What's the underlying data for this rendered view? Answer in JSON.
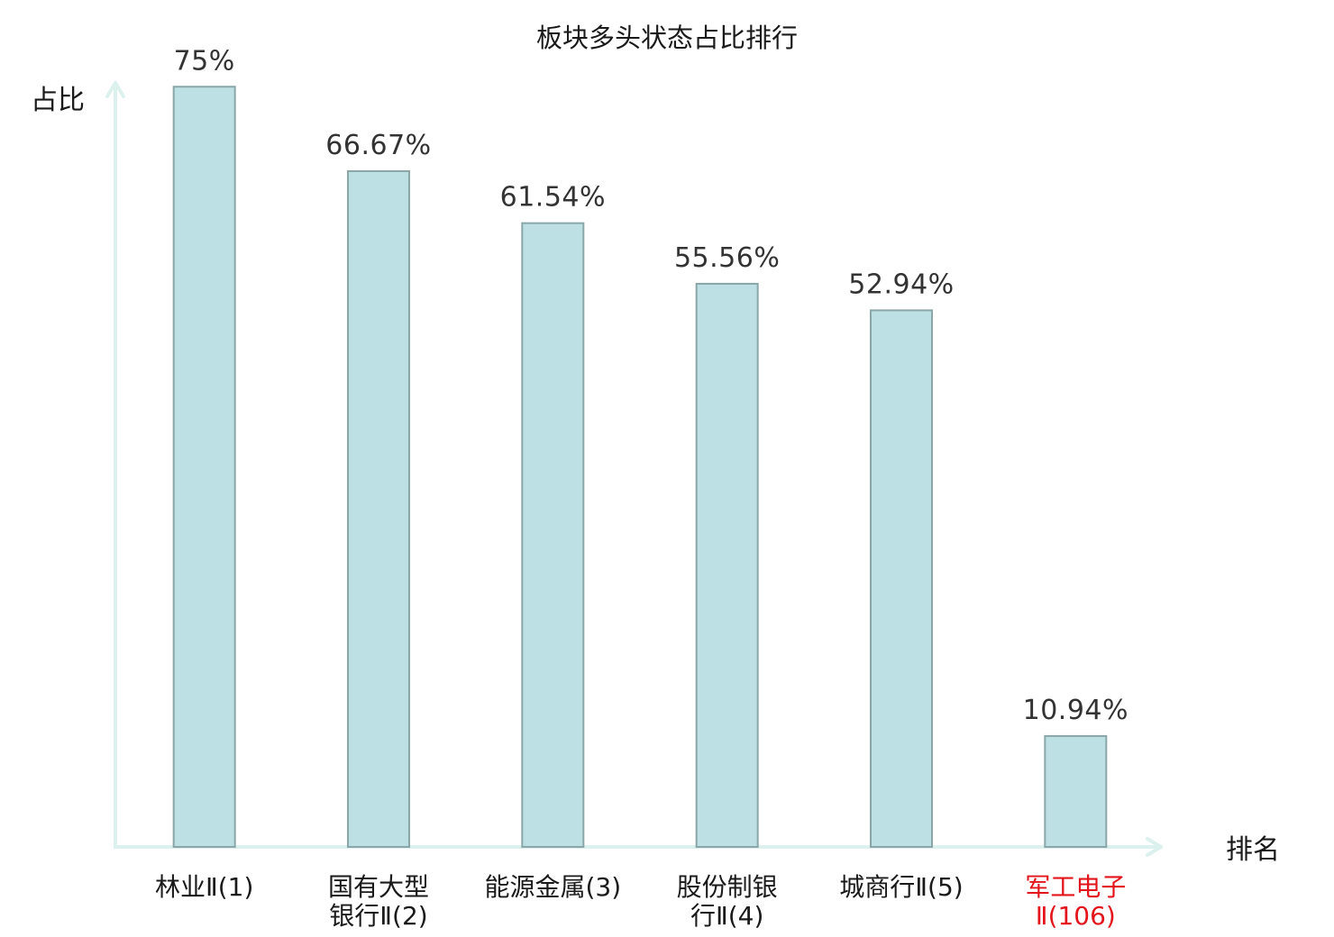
{
  "chart_data": {
    "type": "bar",
    "title": "板块多头状态占比排行",
    "ylabel": "占比",
    "xlabel": "排名",
    "ylim": [
      0,
      80
    ],
    "grid": false,
    "categories": [
      [
        "林业Ⅱ(1)"
      ],
      [
        "国有大型",
        "银行Ⅱ(2)"
      ],
      [
        "能源金属(3)"
      ],
      [
        "股份制银",
        "行Ⅱ(4)"
      ],
      [
        "城商行Ⅱ(5)"
      ],
      [
        "军工电子",
        "Ⅱ(106)"
      ]
    ],
    "values": [
      75,
      66.67,
      61.54,
      55.56,
      52.94,
      10.94
    ],
    "value_labels": [
      "75%",
      "66.67%",
      "61.54%",
      "55.56%",
      "52.94%",
      "10.94%"
    ],
    "highlight_index": 5,
    "colors": {
      "bar_fill": "#bce0e3",
      "bar_stroke": "#8aa6a8",
      "axis": "#dcf1ed",
      "highlight_text": "#e3141b"
    }
  }
}
